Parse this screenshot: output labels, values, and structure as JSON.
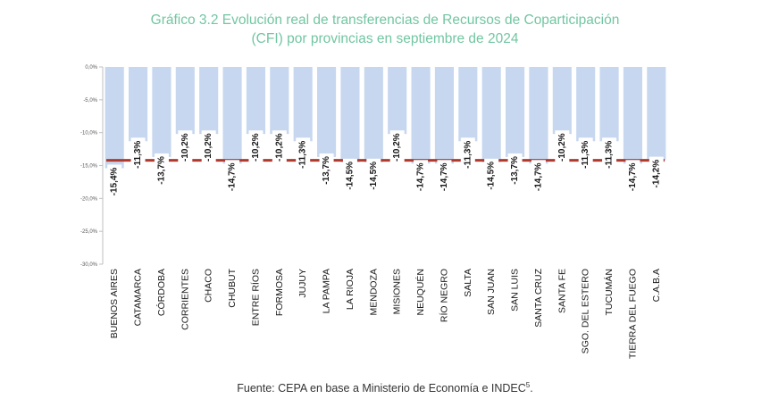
{
  "title": {
    "line1": "Gráfico 3.2 Evolución real de transferencias de Recursos de Coparticipación",
    "line2": "(CFI) por provincias en septiembre de 2024"
  },
  "source": {
    "text": "Fuente: CEPA en base a Ministerio de Economía e INDEC",
    "sup": "5",
    "suffix": "."
  },
  "colors": {
    "title": "#72c6a2",
    "bar": "#c6d7ef",
    "average_line": "#b03a2e",
    "label_box": "#ffffff"
  },
  "chart_data": {
    "type": "bar",
    "categories": [
      "BUENOS AIRES",
      "CATAMARCA",
      "CÓRDOBA",
      "CORRIENTES",
      "CHACO",
      "CHUBUT",
      "ENTRE RÍOS",
      "FORMOSA",
      "JUJUY",
      "LA PAMPA",
      "LA RIOJA",
      "MENDOZA",
      "MISIONES",
      "NEUQUÉN",
      "RÍO NEGRO",
      "SALTA",
      "SAN JUAN",
      "SAN LUIS",
      "SANTA CRUZ",
      "SANTA FE",
      "SGO. DEL ESTERO",
      "TUCUMÁN",
      "TIERRA DEL FUEGO",
      "C.A.B.A"
    ],
    "values": [
      -15.4,
      -11.3,
      -13.7,
      -10.2,
      -10.2,
      -14.7,
      -10.2,
      -10.2,
      -11.3,
      -13.7,
      -14.5,
      -14.5,
      -10.2,
      -14.7,
      -14.7,
      -11.3,
      -14.5,
      -13.7,
      -14.7,
      -10.2,
      -11.3,
      -11.3,
      -14.7,
      -14.2
    ],
    "data_labels": [
      "-15,4%",
      "-11,3%",
      "-13,7%",
      "-10,2%",
      "-10,2%",
      "-14,7%",
      "-10,2%",
      "-10,2%",
      "-11,3%",
      "-13,7%",
      "-14,5%",
      "-14,5%",
      "-10,2%",
      "-14,7%",
      "-14,7%",
      "-11,3%",
      "-14,5%",
      "-13,7%",
      "-14,7%",
      "-10,2%",
      "-11,3%",
      "-11,3%",
      "-14,7%",
      "-14,2%"
    ],
    "average_line": -14.2,
    "ylim": [
      -30,
      0
    ],
    "yticks": [
      0,
      -5,
      -10,
      -15,
      -20,
      -25,
      -30
    ],
    "ytick_labels": [
      "0,0%",
      "-5,0%",
      "-10,0%",
      "-15,0%",
      "-20,0%",
      "-25,0%",
      "-30,0%"
    ],
    "xlabel": "",
    "ylabel": "",
    "grid": false,
    "legend": "none"
  }
}
